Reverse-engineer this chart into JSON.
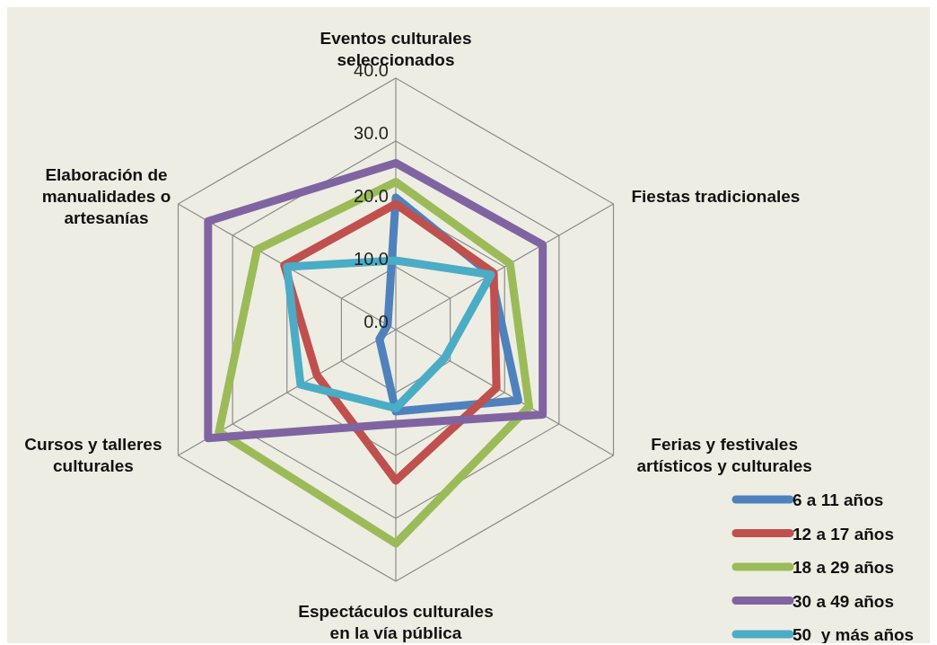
{
  "chart_data": {
    "type": "radar",
    "categories": [
      "Eventos culturales seleccionados",
      "Fiestas tradicionales",
      "Ferias y festivales artísticos y culturales",
      "Espectáculos culturales en la vía pública",
      "Cursos y talleres culturales",
      "Elaboración de manualidades o artesanías"
    ],
    "series": [
      {
        "name": "6 a 11 años",
        "color": "#4f81bd",
        "values": [
          21,
          17.5,
          22.5,
          13,
          3,
          1.5
        ]
      },
      {
        "name": "12 a 17 años",
        "color": "#c0504d",
        "values": [
          20,
          18,
          18.5,
          24,
          14.5,
          20.5
        ]
      },
      {
        "name": "18 a 29 años",
        "color": "#9bbb59",
        "values": [
          23.5,
          21,
          24.5,
          34,
          32.5,
          25.5
        ]
      },
      {
        "name": "30 a 49 años",
        "color": "#8064a2",
        "values": [
          26.5,
          27,
          27,
          15,
          34.5,
          34.5
        ]
      },
      {
        "name": "50  y más años",
        "color": "#4bacc6",
        "values": [
          11,
          17.5,
          9,
          12.5,
          17.5,
          20
        ]
      }
    ],
    "ylim": [
      0,
      40
    ],
    "yticks": [
      {
        "value": 0,
        "label": "0.0"
      },
      {
        "value": 10,
        "label": "10.0"
      },
      {
        "value": 20,
        "label": "20.0"
      },
      {
        "value": 30,
        "label": "30.0"
      },
      {
        "value": 40,
        "label": "40.0"
      }
    ],
    "grid": true,
    "legend": "bottom right"
  }
}
